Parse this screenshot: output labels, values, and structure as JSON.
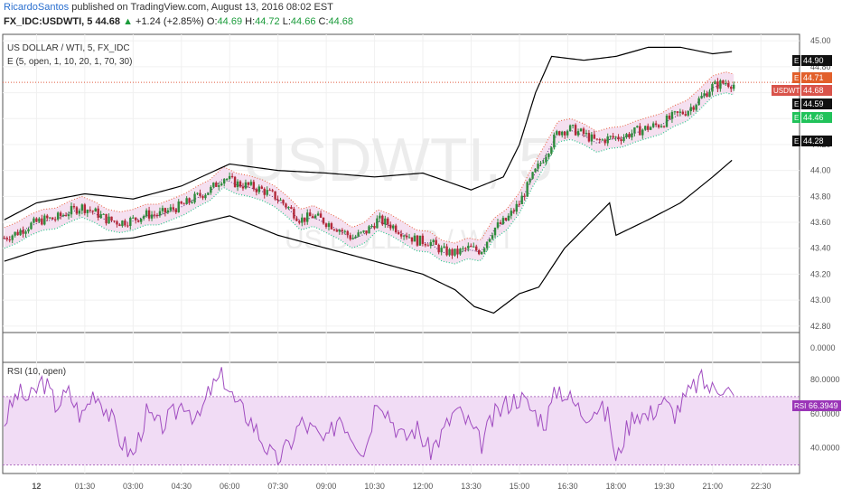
{
  "header": {
    "user": "RicardoSantos",
    "published": "published on TradingView.com, August 13, 2016 08:02 EST",
    "symbol": "FX_IDC:USDWTI, 5",
    "last": "44.68",
    "change_arrow": "▲",
    "change": "+1.24 (+2.85%)",
    "o_label": "O:",
    "o_value": "44.69",
    "h_label": "H:",
    "h_value": "44.72",
    "l_label": "L:",
    "l_value": "44.66",
    "c_label": "C:",
    "c_value": "44.68"
  },
  "legend": {
    "series_title": "US DOLLAR / WTI, 5, FX_IDC",
    "indicator_title": "E (5, open, 1, 10, 20, 1, 70, 30)",
    "rsi_title": "RSI (10, open)"
  },
  "watermark": {
    "big": "USDWTI, 5",
    "small": "US DOLLAR / WTI"
  },
  "colors": {
    "up": "#2e8b3d",
    "down": "#b3283a",
    "band": "#000000",
    "upper_dot": "#e8603c",
    "lower_dot": "#28c88a",
    "mid_dot": "#5a2a7a",
    "fill": "#f2d8ec",
    "rsi_line": "#a04cc0",
    "rsi_fill": "#f1dcf5",
    "price_line": "#e05c40"
  },
  "price_tags": [
    {
      "prefix": "E",
      "value": "44.90",
      "color": "#111111"
    },
    {
      "prefix": "E",
      "value": "44.71",
      "color": "#e2602b"
    },
    {
      "prefix": "USDWTI",
      "value": "44.68",
      "color": "#d9534a"
    },
    {
      "prefix": "E",
      "value": "44.59",
      "color": "#111111"
    },
    {
      "prefix": "E",
      "value": "44.46",
      "color": "#21c25a"
    },
    {
      "prefix": "E",
      "value": "44.28",
      "color": "#111111"
    }
  ],
  "rsi_tag": {
    "prefix": "RSI",
    "value": "66.3949",
    "color": "#9b36b8"
  },
  "middle_axis_label": "0.0000",
  "chart_data": [
    {
      "type": "candlestick",
      "title": "US DOLLAR / WTI, 5, FX_IDC",
      "ylim": [
        42.75,
        45.05
      ],
      "y_ticks": [
        "45.00",
        "44.80",
        "44.60",
        "44.40",
        "44.20",
        "44.00",
        "43.80",
        "43.60",
        "43.40",
        "43.20",
        "43.00",
        "42.80"
      ],
      "x_ticks": [
        "12",
        "01:30",
        "03:00",
        "04:30",
        "06:00",
        "07:30",
        "09:00",
        "10:30",
        "12:00",
        "13:30",
        "15:00",
        "16:30",
        "18:00",
        "19:30",
        "21:00",
        "22:30"
      ],
      "x_ticks_time_hours": [
        0,
        1.5,
        3,
        4.5,
        6,
        7.5,
        9,
        10.5,
        12,
        13.5,
        15,
        16.5,
        18,
        19.5,
        21,
        22.5
      ],
      "xlim_hours": [
        -1.05,
        23.7
      ],
      "close_path": [
        [
          -1.0,
          43.48
        ],
        [
          -0.6,
          43.52
        ],
        [
          -0.2,
          43.58
        ],
        [
          0.2,
          43.62
        ],
        [
          0.6,
          43.63
        ],
        [
          1.0,
          43.68
        ],
        [
          1.4,
          43.72
        ],
        [
          1.8,
          43.68
        ],
        [
          2.2,
          43.62
        ],
        [
          2.6,
          43.6
        ],
        [
          3.0,
          43.62
        ],
        [
          3.4,
          43.66
        ],
        [
          3.8,
          43.66
        ],
        [
          4.2,
          43.7
        ],
        [
          4.6,
          43.74
        ],
        [
          5.0,
          43.8
        ],
        [
          5.4,
          43.85
        ],
        [
          5.8,
          43.95
        ],
        [
          6.2,
          43.9
        ],
        [
          6.6,
          43.88
        ],
        [
          7.0,
          43.85
        ],
        [
          7.4,
          43.8
        ],
        [
          7.8,
          43.72
        ],
        [
          8.2,
          43.62
        ],
        [
          8.6,
          43.65
        ],
        [
          9.0,
          43.6
        ],
        [
          9.4,
          43.55
        ],
        [
          9.8,
          43.48
        ],
        [
          10.2,
          43.52
        ],
        [
          10.6,
          43.62
        ],
        [
          11.0,
          43.58
        ],
        [
          11.4,
          43.52
        ],
        [
          11.8,
          43.46
        ],
        [
          12.2,
          43.45
        ],
        [
          12.6,
          43.38
        ],
        [
          13.0,
          43.36
        ],
        [
          13.4,
          43.4
        ],
        [
          13.8,
          43.38
        ],
        [
          14.2,
          43.55
        ],
        [
          14.6,
          43.62
        ],
        [
          15.0,
          43.75
        ],
        [
          15.4,
          43.95
        ],
        [
          15.8,
          44.12
        ],
        [
          16.2,
          44.3
        ],
        [
          16.6,
          44.32
        ],
        [
          17.0,
          44.28
        ],
        [
          17.4,
          44.22
        ],
        [
          17.8,
          44.25
        ],
        [
          18.2,
          44.26
        ],
        [
          18.6,
          44.3
        ],
        [
          19.0,
          44.33
        ],
        [
          19.4,
          44.36
        ],
        [
          19.8,
          44.42
        ],
        [
          20.2,
          44.46
        ],
        [
          20.6,
          44.55
        ],
        [
          21.0,
          44.65
        ],
        [
          21.4,
          44.68
        ],
        [
          21.7,
          44.66
        ]
      ],
      "bands": {
        "upper_bb_x": [
          -1.0,
          0,
          1.5,
          3,
          4.5,
          6,
          7.5,
          9,
          10.5,
          12,
          13.5,
          14.5,
          15,
          15.5,
          16.0,
          17,
          18,
          19,
          20,
          21,
          21.7
        ],
        "upper_bb": [
          43.62,
          43.75,
          43.82,
          43.78,
          43.88,
          44.05,
          44.0,
          43.98,
          43.95,
          43.98,
          43.85,
          43.95,
          44.2,
          44.6,
          44.88,
          44.85,
          44.88,
          44.95,
          44.95,
          44.9,
          44.92
        ],
        "lower_bb_x": [
          -1.0,
          0,
          1.5,
          3,
          4.5,
          6,
          7.5,
          9,
          10.5,
          12,
          13.0,
          13.6,
          14.2,
          15,
          15.6,
          16.4,
          17.2,
          17.8,
          18.0,
          19,
          20,
          21,
          21.7
        ],
        "lower_bb": [
          43.3,
          43.38,
          43.45,
          43.48,
          43.56,
          43.65,
          43.5,
          43.4,
          43.3,
          43.2,
          43.08,
          42.95,
          42.9,
          43.05,
          43.1,
          43.4,
          43.6,
          43.75,
          43.5,
          43.62,
          43.75,
          43.95,
          44.1
        ]
      }
    },
    {
      "type": "line",
      "title": "RSI (10, open)",
      "ylim": [
        25,
        90
      ],
      "y_ticks": [
        "80.0000",
        "60.0000",
        "40.0000"
      ],
      "band": [
        30,
        70
      ],
      "x_hours": [
        -1.0,
        -0.6,
        -0.2,
        0.2,
        0.6,
        1.0,
        1.4,
        1.8,
        2.2,
        2.6,
        3.0,
        3.4,
        3.8,
        4.2,
        4.6,
        5.0,
        5.4,
        5.8,
        6.2,
        6.6,
        7.0,
        7.4,
        7.8,
        8.2,
        8.6,
        9.0,
        9.4,
        9.8,
        10.2,
        10.6,
        11.0,
        11.4,
        11.8,
        12.2,
        12.6,
        13.0,
        13.4,
        13.8,
        14.2,
        14.6,
        15.0,
        15.4,
        15.8,
        16.2,
        16.6,
        17.0,
        17.4,
        17.8,
        18.0,
        18.2,
        18.6,
        19.0,
        19.4,
        19.8,
        20.2,
        20.6,
        21.0,
        21.4,
        21.7
      ],
      "values": [
        55,
        72,
        68,
        80,
        65,
        72,
        58,
        74,
        62,
        45,
        35,
        60,
        52,
        58,
        68,
        55,
        74,
        82,
        65,
        58,
        45,
        32,
        40,
        55,
        50,
        42,
        60,
        48,
        38,
        72,
        58,
        45,
        52,
        38,
        48,
        62,
        55,
        42,
        58,
        66,
        70,
        62,
        55,
        76,
        68,
        60,
        64,
        58,
        30,
        45,
        62,
        58,
        68,
        60,
        70,
        80,
        74,
        78,
        66
      ]
    }
  ]
}
